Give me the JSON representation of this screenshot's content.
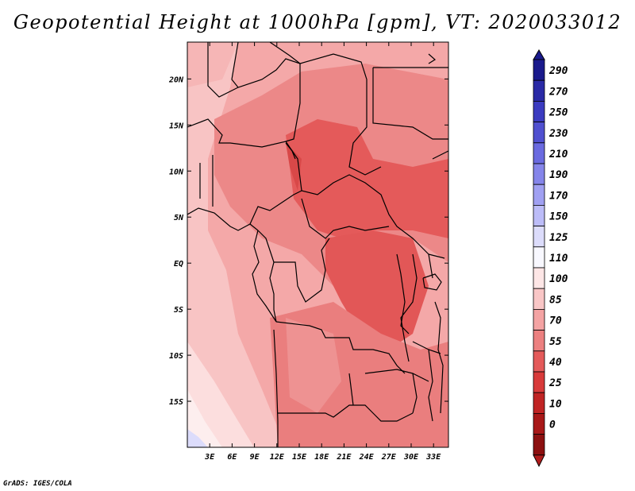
{
  "title": "Geopotential Height at 1000hPa [gpm], VT: 2020033012",
  "credit": "GrADS: IGES/COLA",
  "map": {
    "lon_range": [
      0,
      35
    ],
    "lat_range": [
      -20,
      24
    ],
    "lon_ticks": [
      {
        "value": 3,
        "label": "3E"
      },
      {
        "value": 6,
        "label": "6E"
      },
      {
        "value": 9,
        "label": "9E"
      },
      {
        "value": 12,
        "label": "12E"
      },
      {
        "value": 15,
        "label": "15E"
      },
      {
        "value": 18,
        "label": "18E"
      },
      {
        "value": 21,
        "label": "21E"
      },
      {
        "value": 24,
        "label": "24E"
      },
      {
        "value": 27,
        "label": "27E"
      },
      {
        "value": 30,
        "label": "30E"
      },
      {
        "value": 33,
        "label": "33E"
      }
    ],
    "lat_ticks": [
      {
        "value": 20,
        "label": "20N"
      },
      {
        "value": 15,
        "label": "15N"
      },
      {
        "value": 10,
        "label": "10N"
      },
      {
        "value": 5,
        "label": "5N"
      },
      {
        "value": 0,
        "label": "EQ"
      },
      {
        "value": -5,
        "label": "5S"
      },
      {
        "value": -10,
        "label": "10S"
      },
      {
        "value": -15,
        "label": "15S"
      }
    ]
  },
  "colorbar": {
    "levels": [
      "290",
      "270",
      "250",
      "230",
      "210",
      "190",
      "170",
      "150",
      "125",
      "110",
      "100",
      "85",
      "70",
      "55",
      "40",
      "25",
      "10",
      "0"
    ],
    "colors": [
      "#1a1a8c",
      "#2a2aa6",
      "#3b3bc0",
      "#5050d0",
      "#6a6ae0",
      "#8585ea",
      "#a0a0f2",
      "#bcbcf8",
      "#dcdcfb",
      "#f8f8ff",
      "#fde6e6",
      "#f9c6c6",
      "#f4a3a3",
      "#ec8080",
      "#e45a5a",
      "#d83a3a",
      "#c02424",
      "#a81818",
      "#8c1010"
    ],
    "top_color": "#1a1a8c",
    "bottom_color": "#b01c1c"
  }
}
